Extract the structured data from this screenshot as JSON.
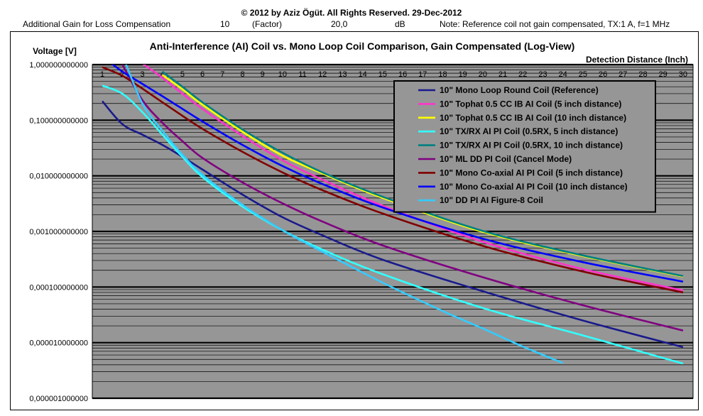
{
  "header": {
    "copyright": "© 2012 by Aziz Ögüt. All Rights Reserved. 29-Dec-2012",
    "gain_label": "Additional Gain for Loss Compensation",
    "gain_factor": "10",
    "factor_label": "(Factor)",
    "gain_db": "20,0",
    "db_label": "dB",
    "note": "Note: Reference coil not gain compensated, TX:1 A, f=1 MHz"
  },
  "chart_data": {
    "type": "line",
    "title": "Anti-Interference (AI) Coil vs. Mono Loop Coil Comparison, Gain Compensated (Log-View)",
    "ylabel": "Voltage [V]",
    "xlabel": "Detection Distance (Inch)",
    "yscale": "log",
    "ylim": [
      1e-06,
      1
    ],
    "xlim": [
      0.5,
      30.5
    ],
    "x_ticks": [
      "1",
      "2",
      "3",
      "4",
      "5",
      "6",
      "7",
      "8",
      "9",
      "10",
      "11",
      "12",
      "13",
      "14",
      "15",
      "16",
      "17",
      "18",
      "19",
      "20",
      "21",
      "22",
      "23",
      "24",
      "25",
      "26",
      "27",
      "28",
      "29",
      "30"
    ],
    "y_tick_labels": [
      "1,000000000000",
      "0,100000000000",
      "0,010000000000",
      "0,001000000000",
      "0,000100000000",
      "0,000010000000",
      "0,000001000000"
    ],
    "grid": true,
    "legend_position": "top-right",
    "series": [
      {
        "name": "10\" Mono Loop Round Coil (Reference)",
        "color": "#1a1a8c",
        "points": [
          [
            1,
            0.22
          ],
          [
            2,
            0.085
          ],
          [
            3,
            0.055
          ],
          [
            4,
            0.036
          ],
          [
            5,
            0.022
          ],
          [
            6,
            0.013
          ],
          [
            8,
            0.0046
          ],
          [
            10,
            0.0018
          ],
          [
            12,
            0.00085
          ],
          [
            15,
            0.00031
          ],
          [
            20,
            8.4e-05
          ],
          [
            25,
            2.5e-05
          ],
          [
            30,
            8.3e-06
          ]
        ]
      },
      {
        "name": "10\" Tophat 0.5 CC IB AI Coil (5 inch distance)",
        "color": "#ff33cc",
        "points": [
          [
            3,
            1.05
          ],
          [
            4,
            0.58
          ],
          [
            5,
            0.3
          ],
          [
            6,
            0.16
          ],
          [
            8,
            0.052
          ],
          [
            10,
            0.019
          ],
          [
            12,
            0.0085
          ],
          [
            15,
            0.0029
          ],
          [
            20,
            0.00065
          ],
          [
            25,
            0.00021
          ],
          [
            30,
            8.7e-05
          ]
        ]
      },
      {
        "name": "10\" Tophat 0.5 CC IB AI Coil (10 inch distance)",
        "color": "#ffff00",
        "points": [
          [
            4,
            0.65
          ],
          [
            5,
            0.36
          ],
          [
            6,
            0.19
          ],
          [
            8,
            0.062
          ],
          [
            10,
            0.023
          ],
          [
            12,
            0.011
          ],
          [
            15,
            0.004
          ],
          [
            20,
            0.00098
          ],
          [
            25,
            0.00036
          ],
          [
            30,
            0.000155
          ]
        ]
      },
      {
        "name": "10\" TX/RX AI PI Coil (0.5RX, 5 inch distance)",
        "color": "#33ffff",
        "points": [
          [
            1,
            0.42
          ],
          [
            2,
            0.3
          ],
          [
            3,
            0.14
          ],
          [
            4,
            0.055
          ],
          [
            5,
            0.022
          ],
          [
            6,
            0.0095
          ],
          [
            8,
            0.0028
          ],
          [
            10,
            0.00105
          ],
          [
            12,
            0.00047
          ],
          [
            15,
            0.00017
          ],
          [
            20,
            4.2e-05
          ],
          [
            25,
            1.35e-05
          ],
          [
            30,
            4.2e-06
          ]
        ]
      },
      {
        "name": "10\" TX/RX AI PI Coil (0.5RX, 10 inch distance)",
        "color": "#008080",
        "points": [
          [
            4,
            0.75
          ],
          [
            5,
            0.4
          ],
          [
            6,
            0.21
          ],
          [
            8,
            0.068
          ],
          [
            10,
            0.026
          ],
          [
            12,
            0.0115
          ],
          [
            15,
            0.0042
          ],
          [
            20,
            0.00102
          ],
          [
            25,
            0.00037
          ],
          [
            30,
            0.000158
          ]
        ]
      },
      {
        "name": "10\" ML DD PI Coil (Cancel Mode)",
        "color": "#800080",
        "points": [
          [
            2,
            1.0
          ],
          [
            3,
            0.23
          ],
          [
            4,
            0.09
          ],
          [
            5,
            0.042
          ],
          [
            6,
            0.021
          ],
          [
            8,
            0.0076
          ],
          [
            10,
            0.0032
          ],
          [
            12,
            0.0015
          ],
          [
            15,
            0.00056
          ],
          [
            20,
            0.00015
          ],
          [
            25,
            4.7e-05
          ],
          [
            30,
            1.65e-05
          ]
        ]
      },
      {
        "name": "10\" Mono Co-axial AI PI Coil (5 inch distance)",
        "color": "#800000",
        "points": [
          [
            1,
            0.9
          ],
          [
            2,
            0.63
          ],
          [
            3,
            0.37
          ],
          [
            4,
            0.21
          ],
          [
            5,
            0.12
          ],
          [
            6,
            0.07
          ],
          [
            8,
            0.027
          ],
          [
            10,
            0.0115
          ],
          [
            12,
            0.0055
          ],
          [
            15,
            0.0021
          ],
          [
            20,
            0.00055
          ],
          [
            25,
            0.00019
          ],
          [
            30,
            8e-05
          ]
        ]
      },
      {
        "name": "10\" Mono Co-axial AI PI Coil (10 inch distance)",
        "color": "#0000ff",
        "points": [
          [
            1,
            1.4
          ],
          [
            2,
            0.75
          ],
          [
            3,
            0.45
          ],
          [
            4,
            0.27
          ],
          [
            5,
            0.16
          ],
          [
            6,
            0.095
          ],
          [
            8,
            0.036
          ],
          [
            10,
            0.015
          ],
          [
            12,
            0.0071
          ],
          [
            15,
            0.0027
          ],
          [
            20,
            0.00074
          ],
          [
            25,
            0.00028
          ],
          [
            30,
            0.000125
          ]
        ]
      },
      {
        "name": "10\" DD PI AI Figure-8 Coil",
        "color": "#33ccff",
        "points": [
          [
            2,
            1.5
          ],
          [
            3,
            0.2
          ],
          [
            4,
            0.065
          ],
          [
            5,
            0.024
          ],
          [
            6,
            0.0105
          ],
          [
            8,
            0.003
          ],
          [
            10,
            0.00105
          ],
          [
            12,
            0.00043
          ],
          [
            15,
            0.00012
          ],
          [
            18,
            3.7e-05
          ],
          [
            20,
            1.8e-05
          ],
          [
            22,
            8.5e-06
          ],
          [
            24,
            4.3e-06
          ]
        ]
      }
    ]
  }
}
